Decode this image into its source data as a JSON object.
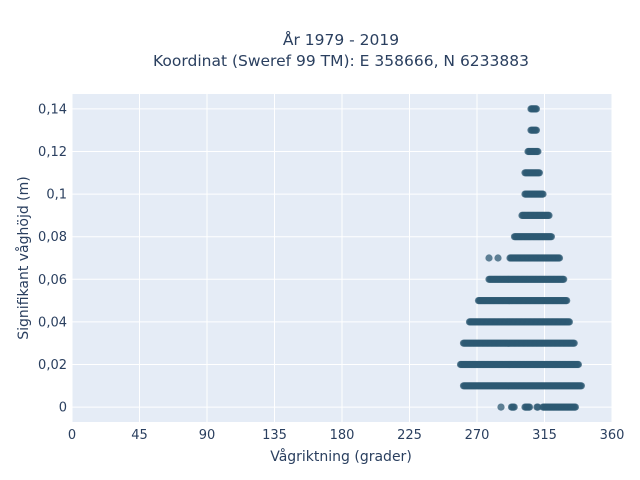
{
  "chart_data": {
    "type": "scatter",
    "title_line1": "År 1979 - 2019",
    "title_line2": "Koordinat (Sweref 99 TM): E 358666, N 6233883",
    "xlabel": "Vågriktning (grader)",
    "ylabel": "Signifikant våghöjd (m)",
    "xlim": [
      0,
      360
    ],
    "ylim": [
      -0.007,
      0.147
    ],
    "xticks": [
      0,
      45,
      90,
      135,
      180,
      225,
      270,
      315,
      360
    ],
    "xtick_labels": [
      "0",
      "45",
      "90",
      "135",
      "180",
      "225",
      "270",
      "315",
      "360"
    ],
    "yticks": [
      0,
      0.02,
      0.04,
      0.06,
      0.08,
      0.1,
      0.12,
      0.14
    ],
    "ytick_labels": [
      "0",
      "0,02",
      "0,04",
      "0,06",
      "0,08",
      "0,1",
      "0,12",
      "0,14"
    ],
    "grid": true,
    "legend": "none",
    "marker_color": "#2e5a73",
    "plot_bg": "#e5ecf6",
    "series": [
      {
        "bands": [
          {
            "y": 0.0,
            "segments": [
              [
                286,
                286
              ],
              [
                293,
                295
              ],
              [
                302,
                305
              ],
              [
                310,
                311
              ],
              [
                314,
                336
              ]
            ]
          },
          {
            "y": 0.01,
            "segments": [
              [
                261,
                340
              ]
            ]
          },
          {
            "y": 0.02,
            "segments": [
              [
                259,
                338
              ]
            ]
          },
          {
            "y": 0.03,
            "segments": [
              [
                261,
                335
              ]
            ]
          },
          {
            "y": 0.04,
            "segments": [
              [
                265,
                332
              ]
            ]
          },
          {
            "y": 0.05,
            "segments": [
              [
                271,
                330
              ]
            ]
          },
          {
            "y": 0.06,
            "segments": [
              [
                278,
                328
              ]
            ]
          },
          {
            "y": 0.07,
            "segments": [
              [
                278,
                278
              ],
              [
                284,
                284
              ],
              [
                292,
                325
              ]
            ]
          },
          {
            "y": 0.08,
            "segments": [
              [
                295,
                320
              ]
            ]
          },
          {
            "y": 0.09,
            "segments": [
              [
                300,
                318
              ]
            ]
          },
          {
            "y": 0.1,
            "segments": [
              [
                302,
                314
              ]
            ]
          },
          {
            "y": 0.11,
            "segments": [
              [
                302,
                312
              ]
            ]
          },
          {
            "y": 0.12,
            "segments": [
              [
                304,
                311
              ]
            ]
          },
          {
            "y": 0.13,
            "segments": [
              [
                306,
                310
              ]
            ]
          },
          {
            "y": 0.14,
            "segments": [
              [
                306,
                310
              ]
            ]
          }
        ]
      }
    ]
  }
}
